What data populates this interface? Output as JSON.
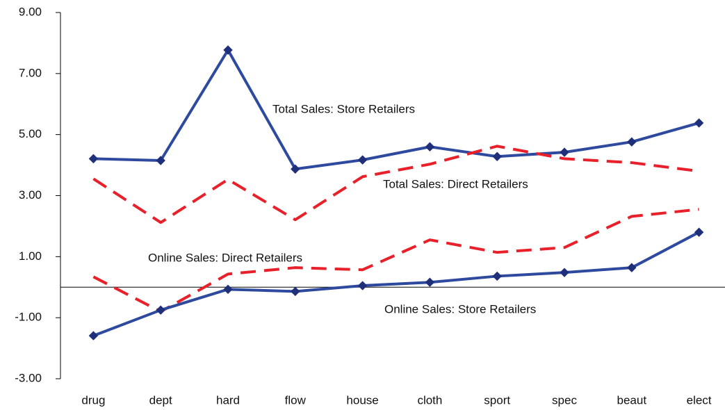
{
  "chart_data": {
    "type": "line",
    "categories": [
      "drug",
      "dept",
      "hard",
      "flow",
      "house",
      "cloth",
      "sport",
      "spec",
      "beaut",
      "elect"
    ],
    "series": [
      {
        "name": "Total Sales: Store Retailers",
        "color": "#2e4a9e",
        "style": "solid",
        "marker": "diamond",
        "values": [
          4.21,
          4.15,
          7.77,
          3.87,
          4.17,
          4.6,
          4.28,
          4.42,
          4.76,
          5.38
        ]
      },
      {
        "name": "Total Sales: Direct Retailers",
        "color": "#e8202a",
        "style": "dashed",
        "marker": "none",
        "values": [
          3.55,
          2.12,
          3.53,
          2.21,
          3.62,
          4.03,
          4.62,
          4.21,
          4.08,
          3.8
        ]
      },
      {
        "name": "Online Sales: Direct Retailers",
        "color": "#e8202a",
        "style": "dashed",
        "marker": "none",
        "values": [
          0.34,
          -0.8,
          0.43,
          0.64,
          0.57,
          1.55,
          1.14,
          1.3,
          2.32,
          2.55
        ]
      },
      {
        "name": "Online Sales: Store Retailers",
        "color": "#2e4a9e",
        "style": "solid",
        "marker": "diamond",
        "values": [
          -1.59,
          -0.75,
          -0.07,
          -0.14,
          0.05,
          0.16,
          0.36,
          0.48,
          0.64,
          1.8
        ]
      }
    ],
    "ylim": [
      -3,
      9
    ],
    "yticks": [
      {
        "value": 9,
        "label": "9.00"
      },
      {
        "value": 7,
        "label": "7.00"
      },
      {
        "value": 5,
        "label": "5.00"
      },
      {
        "value": 3,
        "label": "3.00"
      },
      {
        "value": 1,
        "label": "1.00"
      },
      {
        "value": -1,
        "label": "-1.00"
      },
      {
        "value": -3,
        "label": "-3.00"
      }
    ],
    "grid": false
  }
}
